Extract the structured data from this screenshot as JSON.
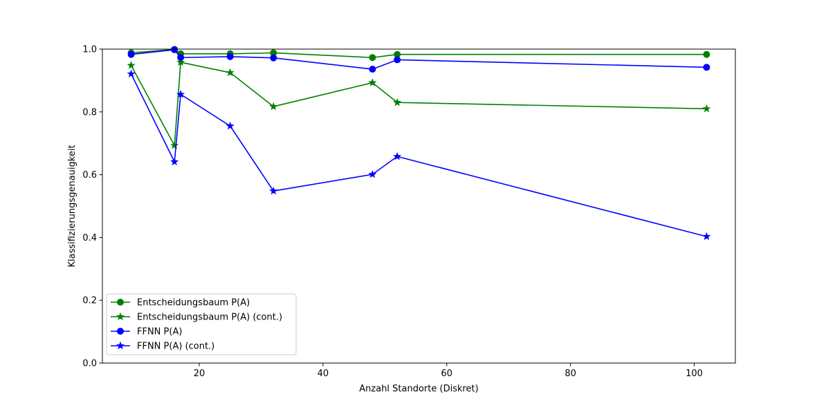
{
  "chart_data": {
    "type": "line",
    "title": "",
    "xlabel": "Anzahl Standorte (Diskret)",
    "ylabel": "Klassifizierungsgenauigkeit",
    "xlim": [
      4.35,
      106.65
    ],
    "ylim": [
      0.0,
      1.0
    ],
    "xticks": [
      20,
      40,
      60,
      80,
      100
    ],
    "yticks": [
      0.0,
      0.2,
      0.4,
      0.6,
      0.8,
      1.0
    ],
    "xtick_labels": [
      "20",
      "40",
      "60",
      "80",
      "100"
    ],
    "ytick_labels": [
      "0.0",
      "0.2",
      "0.4",
      "0.6",
      "0.8",
      "1.0"
    ],
    "grid": false,
    "legend_position": "lower-left",
    "series": [
      {
        "name": "Entscheidungsbaum P(A)",
        "color": "#008000",
        "marker": "circle",
        "x": [
          9,
          16,
          17,
          25,
          32,
          48,
          52,
          102
        ],
        "y": [
          0.988,
          0.999,
          0.985,
          0.985,
          0.988,
          0.973,
          0.983,
          0.983
        ]
      },
      {
        "name": "Entscheidungsbaum P(A) (cont.)",
        "color": "#008000",
        "marker": "star",
        "x": [
          9,
          16,
          17,
          25,
          32,
          48,
          52,
          102
        ],
        "y": [
          0.948,
          0.693,
          0.958,
          0.925,
          0.817,
          0.893,
          0.83,
          0.81
        ]
      },
      {
        "name": "FFNN P(A)",
        "color": "#0000ff",
        "marker": "circle",
        "x": [
          9,
          16,
          17,
          25,
          32,
          48,
          52,
          102
        ],
        "y": [
          0.983,
          0.998,
          0.973,
          0.976,
          0.972,
          0.936,
          0.966,
          0.942
        ]
      },
      {
        "name": "FFNN P(A) (cont.)",
        "color": "#0000ff",
        "marker": "star",
        "x": [
          9,
          16,
          17,
          25,
          32,
          48,
          52,
          102
        ],
        "y": [
          0.921,
          0.641,
          0.856,
          0.755,
          0.548,
          0.601,
          0.658,
          0.403
        ]
      }
    ]
  }
}
